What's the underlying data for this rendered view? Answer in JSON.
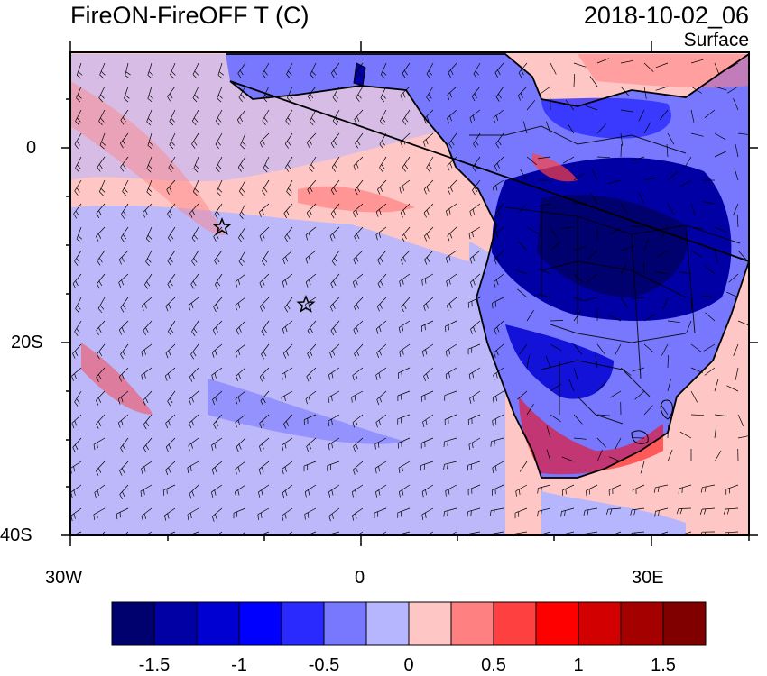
{
  "header": {
    "title": "FireON-FireOFF T (C)",
    "datetime": "2018-10-02_06",
    "level": "Surface"
  },
  "map": {
    "region": "South Atlantic and Southern Africa",
    "lat_ticks": [
      "0",
      "20S",
      "40S"
    ],
    "lon_ticks": [
      "30W",
      "0",
      "30E"
    ],
    "lat_range": [
      -40,
      10
    ],
    "lon_range": [
      -30,
      40
    ],
    "markers": [
      {
        "name": "star-marker",
        "lon": -15.3,
        "lat": -8
      },
      {
        "name": "star-marker",
        "lon": -5.7,
        "lat": -16
      }
    ],
    "wind_barbs": true
  },
  "colorbar": {
    "levels": [
      "-1.5",
      "-1",
      "-0.5",
      "0",
      "0.5",
      "1",
      "1.5"
    ],
    "colors": [
      "#00006e",
      "#0000a5",
      "#0000d2",
      "#0000ff",
      "#2a2aff",
      "#7878ff",
      "#b6b6ff",
      "#ffc6c6",
      "#ff8080",
      "#ff4040",
      "#ff0000",
      "#d20000",
      "#a50000",
      "#800000"
    ]
  }
}
